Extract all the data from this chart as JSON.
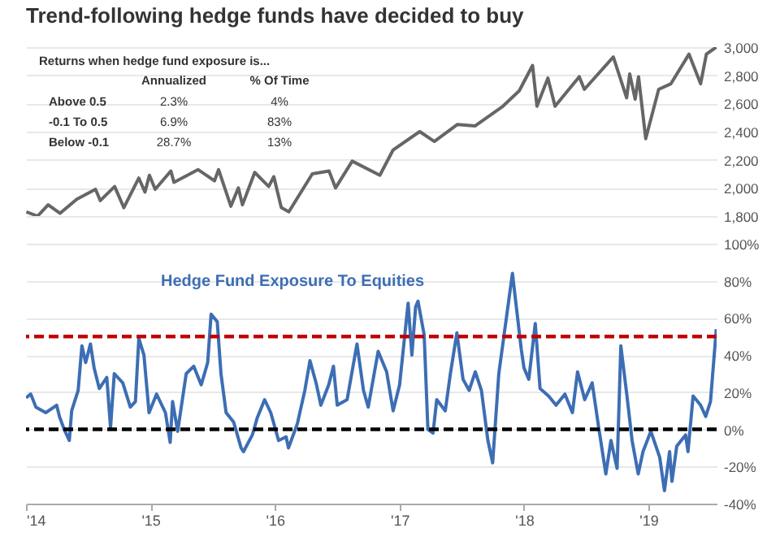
{
  "chart_data": [
    {
      "type": "line",
      "title": "Trend-following hedge funds have decided to buy",
      "annotations": [
        "Returns when hedge fund exposure is...",
        "Annualized",
        "% Of Time",
        "Above 0.5",
        "2.3%",
        "4%",
        "-0.1 To 0.5",
        "6.9%",
        "83%",
        "Below -0.1",
        "28.7%",
        "13%"
      ],
      "series": [
        {
          "color": "#666666",
          "x": [
            "2014-01-02",
            "2014-02-04",
            "2014-03-07",
            "2014-04-11",
            "2014-05-30",
            "2014-07-24",
            "2014-08-07",
            "2014-09-18",
            "2014-10-15",
            "2014-11-28",
            "2014-12-16",
            "2014-12-29",
            "2015-01-15",
            "2015-03-02",
            "2015-03-11",
            "2015-05-21",
            "2015-07-08",
            "2015-07-20",
            "2015-08-25",
            "2015-09-16",
            "2015-09-28",
            "2015-11-03",
            "2015-12-14",
            "2015-12-29",
            "2016-01-20",
            "2016-02-11",
            "2016-04-20",
            "2016-06-08",
            "2016-06-27",
            "2016-08-15",
            "2016-11-04",
            "2016-12-13",
            "2017-03-01",
            "2017-04-13",
            "2017-06-19",
            "2017-08-10",
            "2017-10-31",
            "2017-12-18",
            "2018-01-26",
            "2018-02-08",
            "2018-03-12",
            "2018-04-02",
            "2018-06-12",
            "2018-06-27",
            "2018-09-20",
            "2018-10-29",
            "2018-11-07",
            "2018-11-23",
            "2018-12-03",
            "2018-12-24",
            "2019-01-31",
            "2019-03-08",
            "2019-04-30",
            "2019-06-03",
            "2019-06-20",
            "2019-07-19"
          ],
          "values": [
            1830,
            1800,
            1880,
            1820,
            1920,
            1990,
            1910,
            2010,
            1860,
            2070,
            1970,
            2090,
            1990,
            2120,
            2040,
            2130,
            2050,
            2130,
            1870,
            2000,
            1880,
            2110,
            2010,
            2080,
            1860,
            1830,
            2100,
            2120,
            2000,
            2190,
            2090,
            2270,
            2400,
            2330,
            2450,
            2440,
            2580,
            2690,
            2870,
            2580,
            2780,
            2580,
            2790,
            2700,
            2930,
            2640,
            2810,
            2630,
            2790,
            2350,
            2700,
            2740,
            2950,
            2740,
            2950,
            3000
          ]
        }
      ],
      "xlim": [
        "2014-01-01",
        "2019-07-20"
      ],
      "ylim": [
        1800,
        3000
      ],
      "yticks": [
        {
          "value": 1800,
          "label": "1,800"
        },
        {
          "value": 2000,
          "label": "2,000"
        },
        {
          "value": 2200,
          "label": "2,200"
        },
        {
          "value": 2400,
          "label": "2,400"
        },
        {
          "value": 2600,
          "label": "2,600"
        },
        {
          "value": 2800,
          "label": "2,800"
        },
        {
          "value": 3000,
          "label": "3,000"
        }
      ],
      "grid": "y",
      "tick_labels": "y"
    },
    {
      "type": "line",
      "series": [
        {
          "name": "Hedge Fund Exposure To Equities",
          "color": "#3d6eb4",
          "x": [
            "2014-01-01",
            "2014-01-15",
            "2014-01-30",
            "2014-02-28",
            "2014-04-01",
            "2014-04-09",
            "2014-04-23",
            "2014-05-08",
            "2014-05-15",
            "2014-06-03",
            "2014-06-14",
            "2014-06-25",
            "2014-07-09",
            "2014-07-20",
            "2014-08-04",
            "2014-08-26",
            "2014-09-06",
            "2014-09-17",
            "2014-10-12",
            "2014-11-03",
            "2014-11-18",
            "2014-11-28",
            "2014-12-13",
            "2014-12-28",
            "2015-01-19",
            "2015-02-14",
            "2015-02-28",
            "2015-03-07",
            "2015-03-22",
            "2015-04-16",
            "2015-05-08",
            "2015-05-30",
            "2015-06-18",
            "2015-06-28",
            "2015-07-16",
            "2015-07-27",
            "2015-08-11",
            "2015-09-02",
            "2015-09-24",
            "2015-10-01",
            "2015-10-27",
            "2015-11-10",
            "2015-12-02",
            "2015-12-20",
            "2016-01-12",
            "2016-02-03",
            "2016-02-10",
            "2016-03-07",
            "2016-03-29",
            "2016-04-13",
            "2016-05-01",
            "2016-05-15",
            "2016-06-07",
            "2016-06-21",
            "2016-07-02",
            "2016-07-31",
            "2016-08-29",
            "2016-09-17",
            "2016-10-01",
            "2016-10-30",
            "2016-11-24",
            "2016-12-13",
            "2017-01-01",
            "2017-01-26",
            "2017-02-06",
            "2017-02-17",
            "2017-02-24",
            "2017-03-14",
            "2017-03-25",
            "2017-04-09",
            "2017-04-20",
            "2017-05-15",
            "2017-05-30",
            "2017-06-18",
            "2017-07-06",
            "2017-07-24",
            "2017-08-11",
            "2017-08-29",
            "2017-09-17",
            "2017-10-01",
            "2017-10-19",
            "2017-11-28",
            "2017-12-24",
            "2018-01-01",
            "2018-01-15",
            "2018-02-03",
            "2018-02-17",
            "2018-03-14",
            "2018-04-05",
            "2018-05-01",
            "2018-05-23",
            "2018-06-07",
            "2018-06-28",
            "2018-07-20",
            "2018-08-08",
            "2018-08-29",
            "2018-09-13",
            "2018-10-01",
            "2018-10-12",
            "2018-10-30",
            "2018-11-14",
            "2018-12-02",
            "2018-12-16",
            "2019-01-08",
            "2019-02-03",
            "2019-02-17",
            "2019-03-04",
            "2019-03-11",
            "2019-03-25",
            "2019-04-20",
            "2019-04-27",
            "2019-05-12",
            "2019-06-03",
            "2019-06-18",
            "2019-07-02",
            "2019-07-19"
          ],
          "values": [
            17,
            19,
            12,
            9,
            13,
            7,
            0,
            -6,
            10,
            21,
            45,
            36,
            46,
            33,
            22,
            28,
            1,
            30,
            25,
            12,
            15,
            49,
            40,
            9,
            19,
            9,
            -7,
            15,
            -1,
            30,
            34,
            24,
            36,
            62,
            58,
            30,
            9,
            4,
            -10,
            -12,
            -3,
            6,
            16,
            9,
            -6,
            -4,
            -10,
            3,
            21,
            37,
            25,
            13,
            24,
            34,
            13,
            16,
            46,
            21,
            12,
            42,
            31,
            10,
            24,
            68,
            40,
            66,
            69,
            51,
            0,
            -2,
            16,
            10,
            30,
            52,
            27,
            21,
            31,
            21,
            -6,
            -18,
            30,
            84,
            43,
            33,
            27,
            57,
            22,
            18,
            13,
            19,
            9,
            31,
            16,
            25,
            1,
            -24,
            -6,
            -21,
            45,
            18,
            -6,
            -24,
            -12,
            -1,
            -15,
            -33,
            -12,
            -28,
            -9,
            -3,
            -12,
            18,
            13,
            7,
            15,
            54
          ]
        }
      ],
      "xlim": [
        "2014-01-01",
        "2019-07-20"
      ],
      "xticks": [
        {
          "value": "2014-01-01",
          "label": "'14"
        },
        {
          "value": "2015-01-01",
          "label": "'15"
        },
        {
          "value": "2016-01-01",
          "label": "'16"
        },
        {
          "value": "2017-01-01",
          "label": "'17"
        },
        {
          "value": "2018-01-01",
          "label": "'18"
        },
        {
          "value": "2019-01-01",
          "label": "'19"
        }
      ],
      "ylim": [
        -40,
        100
      ],
      "yticks": [
        {
          "value": -40,
          "label": "-40%"
        },
        {
          "value": -20,
          "label": "-20%"
        },
        {
          "value": 0,
          "label": "0%"
        },
        {
          "value": 20,
          "label": "20%"
        },
        {
          "value": 40,
          "label": "40%"
        },
        {
          "value": 60,
          "label": "60%"
        },
        {
          "value": 80,
          "label": "80%"
        },
        {
          "value": 100,
          "label": "100%"
        }
      ],
      "ref_lines": [
        {
          "axis": "y",
          "value": 50,
          "color": "#c00000",
          "line_style": "dashed"
        },
        {
          "axis": "y",
          "value": 0,
          "color": "#000000",
          "line_style": "dashed"
        }
      ],
      "grid": "y"
    }
  ]
}
